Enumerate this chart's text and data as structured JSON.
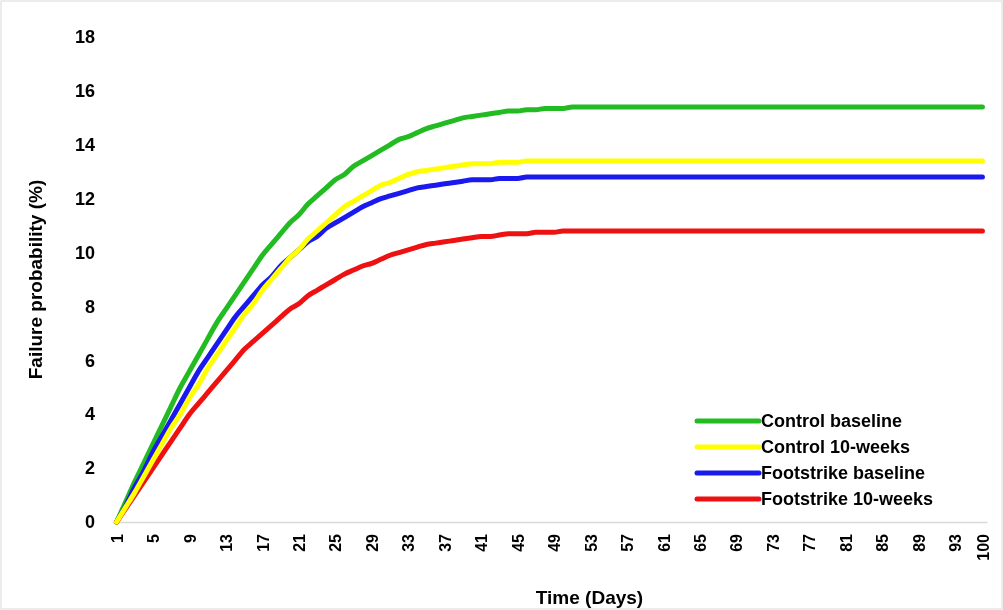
{
  "chart_data": {
    "type": "line",
    "xlabel": "Time (Days)",
    "ylabel": "Failure probability (%)",
    "categories": [
      "1",
      null,
      null,
      null,
      "5",
      null,
      null,
      null,
      "9",
      null,
      null,
      null,
      "13",
      null,
      null,
      null,
      "17",
      null,
      null,
      null,
      "21",
      null,
      null,
      null,
      "25",
      null,
      null,
      null,
      "29",
      null,
      null,
      null,
      "33",
      null,
      null,
      null,
      "37",
      null,
      null,
      null,
      "41",
      null,
      null,
      null,
      "45",
      null,
      null,
      null,
      "49",
      null,
      null,
      null,
      "53",
      null,
      null,
      null,
      "57",
      null,
      null,
      null,
      "61",
      null,
      null,
      null,
      "65",
      null,
      null,
      null,
      "69",
      null,
      null,
      null,
      "73",
      null,
      null,
      null,
      "77",
      null,
      null,
      null,
      "81",
      null,
      null,
      null,
      "85",
      null,
      null,
      null,
      "89",
      null,
      null,
      null,
      "93",
      null,
      null,
      "100"
    ],
    "ylim": [
      0,
      18
    ],
    "yticks": [
      0,
      2,
      4,
      6,
      8,
      10,
      12,
      14,
      16,
      18
    ],
    "grid": false,
    "legend": "bottom right",
    "line_style": "solid",
    "marker": "none",
    "series": [
      {
        "name": "Control baseline",
        "color": "#22bb22",
        "values": [
          0,
          0.75,
          1.5,
          2.2,
          2.9,
          3.6,
          4.3,
          5.0,
          5.6,
          6.2,
          6.8,
          7.4,
          7.9,
          8.4,
          8.9,
          9.4,
          9.9,
          10.3,
          10.7,
          11.1,
          11.4,
          11.8,
          12.1,
          12.4,
          12.7,
          12.9,
          13.2,
          13.4,
          13.6,
          13.8,
          14.0,
          14.2,
          14.3,
          14.45,
          14.6,
          14.7,
          14.8,
          14.9,
          15.0,
          15.05,
          15.1,
          15.15,
          15.2,
          15.25,
          15.25,
          15.3,
          15.3,
          15.35,
          15.35,
          15.35,
          15.4,
          15.4,
          15.4,
          15.4,
          15.4,
          15.4,
          15.4,
          15.4,
          15.4,
          15.4,
          15.4,
          15.4,
          15.4,
          15.4,
          15.4,
          15.4,
          15.4,
          15.4,
          15.4,
          15.4,
          15.4,
          15.4,
          15.4,
          15.4,
          15.4,
          15.4,
          15.4,
          15.4,
          15.4,
          15.4,
          15.4,
          15.4,
          15.4,
          15.4,
          15.4,
          15.4,
          15.4,
          15.4,
          15.4,
          15.4,
          15.4,
          15.4,
          15.4,
          15.4,
          15.4,
          15.4
        ]
      },
      {
        "name": "Control 10-weeks",
        "color": "#ffff00",
        "values": [
          0,
          0.55,
          1.1,
          1.7,
          2.3,
          2.9,
          3.5,
          4.0,
          4.6,
          5.1,
          5.7,
          6.2,
          6.7,
          7.2,
          7.7,
          8.1,
          8.6,
          9.0,
          9.4,
          9.8,
          10.1,
          10.5,
          10.8,
          11.1,
          11.4,
          11.7,
          11.9,
          12.1,
          12.3,
          12.5,
          12.6,
          12.75,
          12.9,
          13.0,
          13.05,
          13.1,
          13.15,
          13.2,
          13.25,
          13.3,
          13.3,
          13.3,
          13.35,
          13.35,
          13.35,
          13.4,
          13.4,
          13.4,
          13.4,
          13.4,
          13.4,
          13.4,
          13.4,
          13.4,
          13.4,
          13.4,
          13.4,
          13.4,
          13.4,
          13.4,
          13.4,
          13.4,
          13.4,
          13.4,
          13.4,
          13.4,
          13.4,
          13.4,
          13.4,
          13.4,
          13.4,
          13.4,
          13.4,
          13.4,
          13.4,
          13.4,
          13.4,
          13.4,
          13.4,
          13.4,
          13.4,
          13.4,
          13.4,
          13.4,
          13.4,
          13.4,
          13.4,
          13.4,
          13.4,
          13.4,
          13.4,
          13.4,
          13.4,
          13.4,
          13.4,
          13.4
        ]
      },
      {
        "name": "Footstrike baseline",
        "color": "#1a1aee",
        "values": [
          0,
          0.6,
          1.3,
          1.9,
          2.6,
          3.2,
          3.8,
          4.4,
          5.0,
          5.6,
          6.1,
          6.6,
          7.1,
          7.6,
          8.0,
          8.4,
          8.8,
          9.1,
          9.5,
          9.8,
          10.1,
          10.4,
          10.6,
          10.9,
          11.1,
          11.3,
          11.5,
          11.7,
          11.85,
          12.0,
          12.1,
          12.2,
          12.3,
          12.4,
          12.45,
          12.5,
          12.55,
          12.6,
          12.65,
          12.7,
          12.7,
          12.7,
          12.75,
          12.75,
          12.75,
          12.8,
          12.8,
          12.8,
          12.8,
          12.8,
          12.8,
          12.8,
          12.8,
          12.8,
          12.8,
          12.8,
          12.8,
          12.8,
          12.8,
          12.8,
          12.8,
          12.8,
          12.8,
          12.8,
          12.8,
          12.8,
          12.8,
          12.8,
          12.8,
          12.8,
          12.8,
          12.8,
          12.8,
          12.8,
          12.8,
          12.8,
          12.8,
          12.8,
          12.8,
          12.8,
          12.8,
          12.8,
          12.8,
          12.8,
          12.8,
          12.8,
          12.8,
          12.8,
          12.8,
          12.8,
          12.8,
          12.8,
          12.8,
          12.8,
          12.8,
          12.8
        ]
      },
      {
        "name": "Footstrike 10-weeks",
        "color": "#ee1111",
        "values": [
          0,
          0.5,
          1.0,
          1.5,
          2.0,
          2.5,
          3.0,
          3.5,
          4.0,
          4.4,
          4.8,
          5.2,
          5.6,
          6.0,
          6.4,
          6.7,
          7.0,
          7.3,
          7.6,
          7.9,
          8.1,
          8.4,
          8.6,
          8.8,
          9.0,
          9.2,
          9.35,
          9.5,
          9.6,
          9.75,
          9.9,
          10.0,
          10.1,
          10.2,
          10.3,
          10.35,
          10.4,
          10.45,
          10.5,
          10.55,
          10.6,
          10.6,
          10.65,
          10.7,
          10.7,
          10.7,
          10.75,
          10.75,
          10.75,
          10.8,
          10.8,
          10.8,
          10.8,
          10.8,
          10.8,
          10.8,
          10.8,
          10.8,
          10.8,
          10.8,
          10.8,
          10.8,
          10.8,
          10.8,
          10.8,
          10.8,
          10.8,
          10.8,
          10.8,
          10.8,
          10.8,
          10.8,
          10.8,
          10.8,
          10.8,
          10.8,
          10.8,
          10.8,
          10.8,
          10.8,
          10.8,
          10.8,
          10.8,
          10.8,
          10.8,
          10.8,
          10.8,
          10.8,
          10.8,
          10.8,
          10.8,
          10.8,
          10.8,
          10.8,
          10.8,
          10.8
        ]
      }
    ]
  }
}
